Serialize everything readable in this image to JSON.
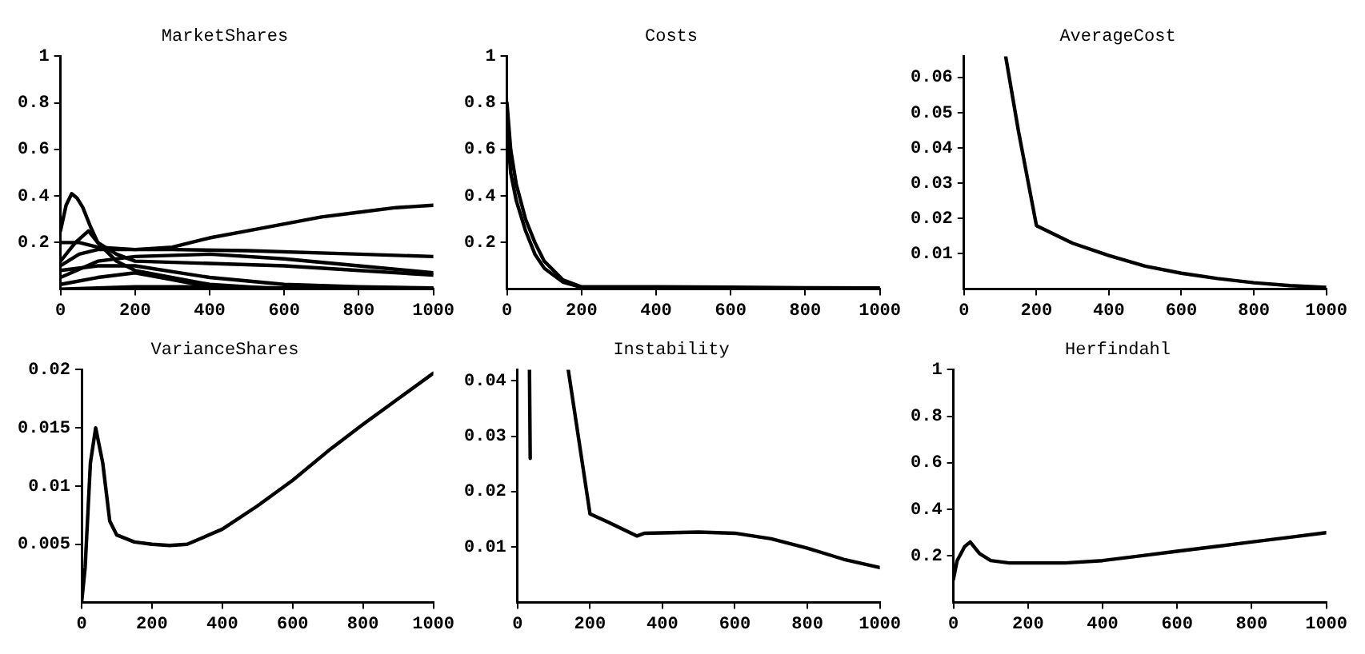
{
  "chart_data": [
    {
      "type": "line",
      "title": "MarketShares",
      "xlim": [
        0,
        1000
      ],
      "ylim": [
        0,
        1
      ],
      "xticks": [
        0,
        200,
        400,
        600,
        800,
        1000
      ],
      "yticks": [
        0.2,
        0.4,
        0.6,
        0.8,
        1
      ],
      "grid": false,
      "marker": "none",
      "series": [
        {
          "color": "#000000",
          "x": [
            0,
            50,
            100,
            200,
            300,
            400,
            500,
            600,
            700,
            800,
            900,
            1000
          ],
          "values": [
            0.2,
            0.2,
            0.18,
            0.17,
            0.18,
            0.22,
            0.25,
            0.28,
            0.31,
            0.33,
            0.35,
            0.36
          ]
        },
        {
          "color": "#000000",
          "x": [
            0,
            15,
            30,
            45,
            60,
            80,
            100,
            150,
            200,
            300,
            400,
            500,
            600,
            800,
            1000
          ],
          "values": [
            0.25,
            0.36,
            0.41,
            0.39,
            0.35,
            0.27,
            0.2,
            0.12,
            0.08,
            0.05,
            0.02,
            0.01,
            0,
            0,
            0
          ]
        },
        {
          "color": "#000000",
          "x": [
            0,
            50,
            100,
            300,
            500,
            800,
            1000
          ],
          "values": [
            0.1,
            0.15,
            0.17,
            0.17,
            0.165,
            0.15,
            0.14
          ]
        },
        {
          "color": "#000000",
          "x": [
            0,
            100,
            200,
            400,
            600,
            800,
            1000
          ],
          "values": [
            0.05,
            0.12,
            0.14,
            0.15,
            0.13,
            0.1,
            0.07
          ]
        },
        {
          "color": "#000000",
          "x": [
            0,
            40,
            75,
            100,
            150,
            200,
            400,
            600,
            800,
            1000
          ],
          "values": [
            0.12,
            0.2,
            0.25,
            0.2,
            0.15,
            0.12,
            0.11,
            0.1,
            0.08,
            0.06
          ]
        },
        {
          "color": "#000000",
          "x": [
            0,
            100,
            200,
            400,
            600,
            800,
            1000
          ],
          "values": [
            0.08,
            0.1,
            0.1,
            0.05,
            0.02,
            0.01,
            0.005
          ]
        },
        {
          "color": "#000000",
          "x": [
            0,
            100,
            200,
            300,
            400,
            600,
            1000
          ],
          "values": [
            0.02,
            0.05,
            0.07,
            0.04,
            0.01,
            0,
            0
          ]
        },
        {
          "color": "#000000",
          "x": [
            0,
            200,
            400,
            600,
            1000
          ],
          "values": [
            0,
            0.01,
            0.01,
            0.005,
            0.003
          ]
        }
      ]
    },
    {
      "type": "line",
      "title": "Costs",
      "xlim": [
        0,
        1000
      ],
      "ylim": [
        0,
        1
      ],
      "xticks": [
        0,
        200,
        400,
        600,
        800,
        1000
      ],
      "yticks": [
        0.2,
        0.4,
        0.6,
        0.8,
        1
      ],
      "grid": false,
      "marker": "none",
      "series": [
        {
          "color": "#000000",
          "x": [
            0,
            10,
            25,
            50,
            75,
            100,
            150,
            200,
            400,
            600,
            800,
            1000
          ],
          "values": [
            0.8,
            0.6,
            0.45,
            0.3,
            0.2,
            0.12,
            0.04,
            0.01,
            0.01,
            0.008,
            0.006,
            0.005
          ]
        },
        {
          "color": "#000000",
          "x": [
            0,
            10,
            25,
            50,
            75,
            100,
            150,
            200,
            400,
            1000
          ],
          "values": [
            0.7,
            0.5,
            0.38,
            0.25,
            0.15,
            0.09,
            0.03,
            0.008,
            0.005,
            0.003
          ]
        }
      ]
    },
    {
      "type": "line",
      "title": "AverageCost",
      "xlim": [
        0,
        1000
      ],
      "ylim": [
        0,
        0.066
      ],
      "xticks": [
        0,
        200,
        400,
        600,
        800,
        1000
      ],
      "yticks": [
        0.01,
        0.02,
        0.03,
        0.04,
        0.05,
        0.06
      ],
      "grid": false,
      "marker": "none",
      "series": [
        {
          "color": "#000000",
          "x": [
            115,
            150,
            200,
            300,
            400,
            500,
            600,
            700,
            800,
            900,
            1000
          ],
          "values": [
            0.066,
            0.045,
            0.018,
            0.013,
            0.0095,
            0.0065,
            0.0045,
            0.003,
            0.0018,
            0.001,
            0.0005
          ]
        }
      ]
    },
    {
      "type": "line",
      "title": "VarianceShares",
      "xlim": [
        0,
        1000
      ],
      "ylim": [
        0,
        0.02
      ],
      "xticks": [
        0,
        200,
        400,
        600,
        800,
        1000
      ],
      "yticks": [
        0.005,
        0.01,
        0.015,
        0.02
      ],
      "grid": false,
      "marker": "none",
      "series": [
        {
          "color": "#000000",
          "x": [
            0,
            10,
            25,
            40,
            60,
            80,
            100,
            150,
            200,
            250,
            300,
            400,
            500,
            600,
            700,
            800,
            900,
            1000
          ],
          "values": [
            0,
            0.003,
            0.012,
            0.015,
            0.012,
            0.007,
            0.0058,
            0.0052,
            0.005,
            0.0049,
            0.005,
            0.0063,
            0.0083,
            0.0105,
            0.013,
            0.0153,
            0.0175,
            0.0197
          ]
        }
      ]
    },
    {
      "type": "line",
      "title": "Instability",
      "xlim": [
        0,
        1000
      ],
      "ylim": [
        0,
        0.042
      ],
      "xticks": [
        0,
        200,
        400,
        600,
        800,
        1000
      ],
      "yticks": [
        0.01,
        0.02,
        0.03,
        0.04
      ],
      "grid": false,
      "marker": "none",
      "series": [
        {
          "color": "#000000",
          "x": [
            33,
            35
          ],
          "values": [
            0.042,
            0.026
          ]
        },
        {
          "color": "#000000",
          "x": [
            140,
            200,
            250,
            330,
            350,
            500,
            600,
            700,
            800,
            900,
            1000
          ],
          "values": [
            0.042,
            0.016,
            0.0145,
            0.012,
            0.0125,
            0.0127,
            0.0125,
            0.0115,
            0.0098,
            0.0078,
            0.0063
          ]
        }
      ]
    },
    {
      "type": "line",
      "title": "Herfindahl",
      "xlim": [
        0,
        1000
      ],
      "ylim": [
        0,
        1
      ],
      "xticks": [
        0,
        200,
        400,
        600,
        800,
        1000
      ],
      "yticks": [
        0.2,
        0.4,
        0.6,
        0.8,
        1
      ],
      "grid": false,
      "marker": "none",
      "series": [
        {
          "color": "#000000",
          "x": [
            0,
            10,
            30,
            45,
            70,
            100,
            150,
            300,
            400,
            500,
            600,
            700,
            800,
            900,
            1000
          ],
          "values": [
            0.1,
            0.18,
            0.24,
            0.26,
            0.21,
            0.18,
            0.17,
            0.17,
            0.18,
            0.2,
            0.22,
            0.24,
            0.26,
            0.28,
            0.3
          ]
        }
      ]
    }
  ]
}
